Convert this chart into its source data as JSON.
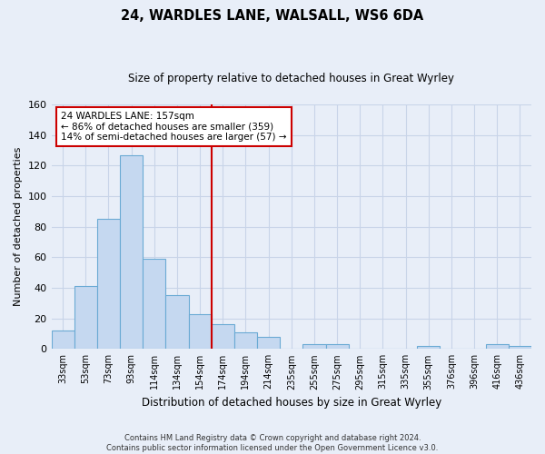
{
  "title": "24, WARDLES LANE, WALSALL, WS6 6DA",
  "subtitle": "Size of property relative to detached houses in Great Wyrley",
  "xlabel": "Distribution of detached houses by size in Great Wyrley",
  "ylabel": "Number of detached properties",
  "bar_labels": [
    "33sqm",
    "53sqm",
    "73sqm",
    "93sqm",
    "114sqm",
    "134sqm",
    "154sqm",
    "174sqm",
    "194sqm",
    "214sqm",
    "235sqm",
    "255sqm",
    "275sqm",
    "295sqm",
    "315sqm",
    "335sqm",
    "355sqm",
    "376sqm",
    "396sqm",
    "416sqm",
    "436sqm"
  ],
  "bar_heights": [
    12,
    41,
    85,
    127,
    59,
    35,
    23,
    16,
    11,
    8,
    0,
    3,
    3,
    0,
    0,
    0,
    2,
    0,
    0,
    3,
    2
  ],
  "bar_color": "#c5d8f0",
  "bar_edge_color": "#6aaad4",
  "vline_x": 6.5,
  "vline_color": "#cc0000",
  "ylim": [
    0,
    160
  ],
  "yticks": [
    0,
    20,
    40,
    60,
    80,
    100,
    120,
    140,
    160
  ],
  "annotation_line1": "24 WARDLES LANE: 157sqm",
  "annotation_line2": "← 86% of detached houses are smaller (359)",
  "annotation_line3": "14% of semi-detached houses are larger (57) →",
  "footer_line1": "Contains HM Land Registry data © Crown copyright and database right 2024.",
  "footer_line2": "Contains public sector information licensed under the Open Government Licence v3.0.",
  "bg_color": "#e8eef8",
  "plot_bg_color": "#e8eef8",
  "grid_color": "#c8d4e8"
}
